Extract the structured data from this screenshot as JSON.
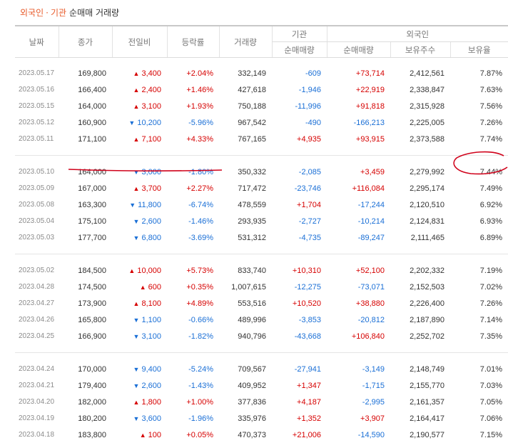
{
  "title": {
    "part1": "외국인",
    "part2": "기관",
    "rest": "순매매 거래량"
  },
  "headers": {
    "date": "날짜",
    "close": "종가",
    "change": "전일비",
    "rate": "등락률",
    "volume": "거래량",
    "institution": "기관",
    "foreign": "외국인",
    "inst_net": "순매매량",
    "foreign_net": "순매매량",
    "holdings": "보유주수",
    "ratio": "보유율"
  },
  "colors": {
    "up": "#d60000",
    "down": "#1a6fd6",
    "accent": "#e85c2c",
    "annotation": "#d0021b"
  },
  "groups": [
    {
      "rows": [
        {
          "date": "2023.05.17",
          "close": "169,800",
          "dir": "up",
          "change": "3,400",
          "rate": "+2.04%",
          "volume": "332,149",
          "inst": "-609",
          "foreign": "+73,714",
          "holdings": "2,412,561",
          "ratio": "7.87%"
        },
        {
          "date": "2023.05.16",
          "close": "166,400",
          "dir": "up",
          "change": "2,400",
          "rate": "+1.46%",
          "volume": "427,618",
          "inst": "-1,946",
          "foreign": "+22,919",
          "holdings": "2,338,847",
          "ratio": "7.63%"
        },
        {
          "date": "2023.05.15",
          "close": "164,000",
          "dir": "up",
          "change": "3,100",
          "rate": "+1.93%",
          "volume": "750,188",
          "inst": "-11,996",
          "foreign": "+91,818",
          "holdings": "2,315,928",
          "ratio": "7.56%"
        },
        {
          "date": "2023.05.12",
          "close": "160,900",
          "dir": "down",
          "change": "10,200",
          "rate": "-5.96%",
          "volume": "967,542",
          "inst": "-490",
          "foreign": "-166,213",
          "holdings": "2,225,005",
          "ratio": "7.26%"
        },
        {
          "date": "2023.05.11",
          "close": "171,100",
          "dir": "up",
          "change": "7,100",
          "rate": "+4.33%",
          "volume": "767,165",
          "inst": "+4,935",
          "foreign": "+93,915",
          "holdings": "2,373,588",
          "ratio": "7.74%"
        }
      ]
    },
    {
      "rows": [
        {
          "date": "2023.05.10",
          "close": "164,000",
          "dir": "down",
          "change": "3,000",
          "rate": "-1.80%",
          "volume": "350,332",
          "inst": "-2,085",
          "foreign": "+3,459",
          "holdings": "2,279,992",
          "ratio": "7.44%"
        },
        {
          "date": "2023.05.09",
          "close": "167,000",
          "dir": "up",
          "change": "3,700",
          "rate": "+2.27%",
          "volume": "717,472",
          "inst": "-23,746",
          "foreign": "+116,084",
          "holdings": "2,295,174",
          "ratio": "7.49%"
        },
        {
          "date": "2023.05.08",
          "close": "163,300",
          "dir": "down",
          "change": "11,800",
          "rate": "-6.74%",
          "volume": "478,559",
          "inst": "+1,704",
          "foreign": "-17,244",
          "holdings": "2,120,510",
          "ratio": "6.92%"
        },
        {
          "date": "2023.05.04",
          "close": "175,100",
          "dir": "down",
          "change": "2,600",
          "rate": "-1.46%",
          "volume": "293,935",
          "inst": "-2,727",
          "foreign": "-10,214",
          "holdings": "2,124,831",
          "ratio": "6.93%"
        },
        {
          "date": "2023.05.03",
          "close": "177,700",
          "dir": "down",
          "change": "6,800",
          "rate": "-3.69%",
          "volume": "531,312",
          "inst": "-4,735",
          "foreign": "-89,247",
          "holdings": "2,111,465",
          "ratio": "6.89%"
        }
      ]
    },
    {
      "rows": [
        {
          "date": "2023.05.02",
          "close": "184,500",
          "dir": "up",
          "change": "10,000",
          "rate": "+5.73%",
          "volume": "833,740",
          "inst": "+10,310",
          "foreign": "+52,100",
          "holdings": "2,202,332",
          "ratio": "7.19%"
        },
        {
          "date": "2023.04.28",
          "close": "174,500",
          "dir": "up",
          "change": "600",
          "rate": "+0.35%",
          "volume": "1,007,615",
          "inst": "-12,275",
          "foreign": "-73,071",
          "holdings": "2,152,503",
          "ratio": "7.02%"
        },
        {
          "date": "2023.04.27",
          "close": "173,900",
          "dir": "up",
          "change": "8,100",
          "rate": "+4.89%",
          "volume": "553,516",
          "inst": "+10,520",
          "foreign": "+38,880",
          "holdings": "2,226,400",
          "ratio": "7.26%"
        },
        {
          "date": "2023.04.26",
          "close": "165,800",
          "dir": "down",
          "change": "1,100",
          "rate": "-0.66%",
          "volume": "489,996",
          "inst": "-3,853",
          "foreign": "-20,812",
          "holdings": "2,187,890",
          "ratio": "7.14%"
        },
        {
          "date": "2023.04.25",
          "close": "166,900",
          "dir": "down",
          "change": "3,100",
          "rate": "-1.82%",
          "volume": "940,796",
          "inst": "-43,668",
          "foreign": "+106,840",
          "holdings": "2,252,702",
          "ratio": "7.35%"
        }
      ]
    },
    {
      "rows": [
        {
          "date": "2023.04.24",
          "close": "170,000",
          "dir": "down",
          "change": "9,400",
          "rate": "-5.24%",
          "volume": "709,567",
          "inst": "-27,941",
          "foreign": "-3,149",
          "holdings": "2,148,749",
          "ratio": "7.01%"
        },
        {
          "date": "2023.04.21",
          "close": "179,400",
          "dir": "down",
          "change": "2,600",
          "rate": "-1.43%",
          "volume": "409,952",
          "inst": "+1,347",
          "foreign": "-1,715",
          "holdings": "2,155,770",
          "ratio": "7.03%"
        },
        {
          "date": "2023.04.20",
          "close": "182,000",
          "dir": "up",
          "change": "1,800",
          "rate": "+1.00%",
          "volume": "377,836",
          "inst": "+4,187",
          "foreign": "-2,995",
          "holdings": "2,161,357",
          "ratio": "7.05%"
        },
        {
          "date": "2023.04.19",
          "close": "180,200",
          "dir": "down",
          "change": "3,600",
          "rate": "-1.96%",
          "volume": "335,976",
          "inst": "+1,352",
          "foreign": "+3,907",
          "holdings": "2,164,417",
          "ratio": "7.06%"
        },
        {
          "date": "2023.04.18",
          "close": "183,800",
          "dir": "up",
          "change": "100",
          "rate": "+0.05%",
          "volume": "470,373",
          "inst": "+21,006",
          "foreign": "-14,590",
          "holdings": "2,190,577",
          "ratio": "7.15%"
        }
      ]
    }
  ]
}
